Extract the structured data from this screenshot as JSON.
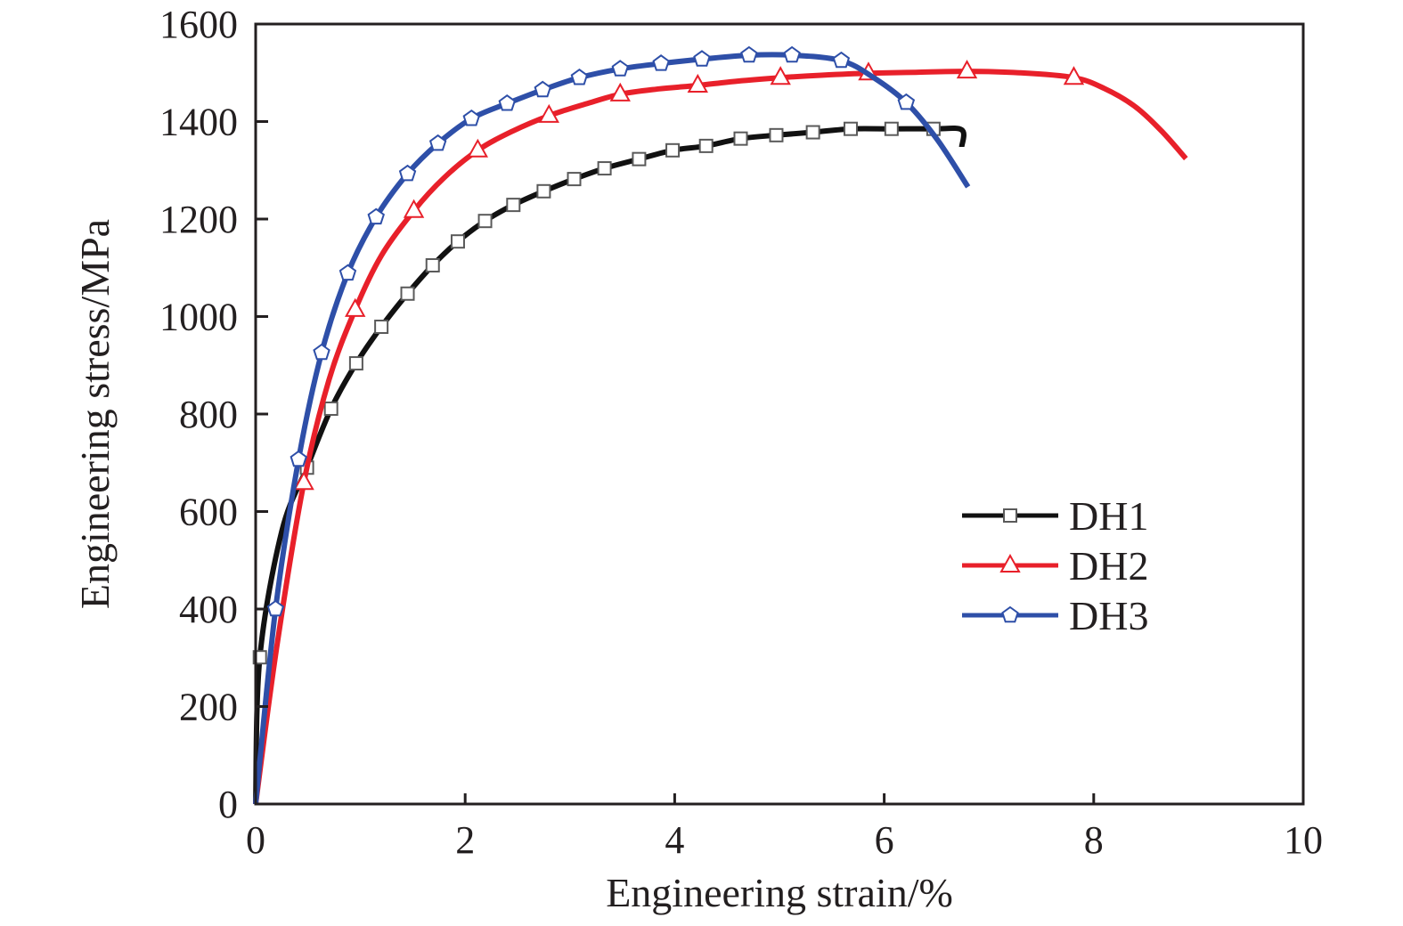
{
  "chart_data": {
    "type": "line",
    "title": "",
    "xlabel": "Engineering strain/%",
    "ylabel": "Engineering stress/MPa",
    "xlim": [
      0,
      10
    ],
    "ylim": [
      0,
      1600
    ],
    "xticks": [
      0,
      2,
      4,
      6,
      8,
      10
    ],
    "yticks": [
      0,
      200,
      400,
      600,
      800,
      1000,
      1200,
      1400,
      1600
    ],
    "xtick_labels": [
      "0",
      "2",
      "4",
      "6",
      "8",
      "10"
    ],
    "ytick_labels": [
      "0",
      "200",
      "400",
      "600",
      "800",
      "1000",
      "1200",
      "1400",
      "1600"
    ],
    "grid": false,
    "legend_position": "center-right",
    "series": [
      {
        "name": "DH1",
        "color": "#111111",
        "marker": "square",
        "line": [
          [
            0,
            0
          ],
          [
            0.04,
            301
          ],
          [
            0.25,
            560
          ],
          [
            0.49,
            690
          ],
          [
            0.72,
            811
          ],
          [
            0.96,
            904
          ],
          [
            1.2,
            979
          ],
          [
            1.45,
            1047
          ],
          [
            1.69,
            1105
          ],
          [
            1.93,
            1154
          ],
          [
            2.19,
            1196
          ],
          [
            2.46,
            1229
          ],
          [
            2.75,
            1257
          ],
          [
            3.04,
            1282
          ],
          [
            3.33,
            1304
          ],
          [
            3.66,
            1323
          ],
          [
            3.98,
            1341
          ],
          [
            4.3,
            1350
          ],
          [
            4.63,
            1365
          ],
          [
            4.97,
            1372
          ],
          [
            5.32,
            1378
          ],
          [
            5.68,
            1385
          ],
          [
            6.07,
            1385
          ],
          [
            6.47,
            1385
          ],
          [
            6.74,
            1383
          ],
          [
            6.74,
            1348
          ]
        ],
        "markers": [
          [
            0.04,
            301
          ],
          [
            0.49,
            690
          ],
          [
            0.72,
            811
          ],
          [
            0.96,
            904
          ],
          [
            1.2,
            979
          ],
          [
            1.45,
            1047
          ],
          [
            1.69,
            1105
          ],
          [
            1.93,
            1154
          ],
          [
            2.19,
            1196
          ],
          [
            2.46,
            1229
          ],
          [
            2.75,
            1257
          ],
          [
            3.04,
            1282
          ],
          [
            3.33,
            1304
          ],
          [
            3.66,
            1323
          ],
          [
            3.98,
            1341
          ],
          [
            4.3,
            1350
          ],
          [
            4.63,
            1365
          ],
          [
            4.97,
            1372
          ],
          [
            5.32,
            1378
          ],
          [
            5.68,
            1385
          ],
          [
            6.07,
            1385
          ],
          [
            6.47,
            1385
          ]
        ]
      },
      {
        "name": "DH2",
        "color": "#e8202a",
        "marker": "triangle",
        "line": [
          [
            0,
            0
          ],
          [
            0.2,
            320
          ],
          [
            0.46,
            659
          ],
          [
            0.7,
            870
          ],
          [
            0.95,
            1014
          ],
          [
            1.2,
            1125
          ],
          [
            1.51,
            1217
          ],
          [
            1.8,
            1285
          ],
          [
            2.12,
            1341
          ],
          [
            2.45,
            1380
          ],
          [
            2.8,
            1412
          ],
          [
            3.15,
            1436
          ],
          [
            3.48,
            1456
          ],
          [
            3.85,
            1467
          ],
          [
            4.22,
            1474
          ],
          [
            4.6,
            1483
          ],
          [
            5.01,
            1490
          ],
          [
            5.4,
            1495
          ],
          [
            5.85,
            1499
          ],
          [
            6.3,
            1501
          ],
          [
            6.79,
            1503
          ],
          [
            7.3,
            1500
          ],
          [
            7.81,
            1490
          ],
          [
            8.1,
            1468
          ],
          [
            8.4,
            1430
          ],
          [
            8.65,
            1380
          ],
          [
            8.88,
            1324
          ]
        ],
        "markers": [
          [
            0.46,
            659
          ],
          [
            0.95,
            1014
          ],
          [
            1.51,
            1217
          ],
          [
            2.12,
            1341
          ],
          [
            2.8,
            1412
          ],
          [
            3.48,
            1456
          ],
          [
            4.22,
            1474
          ],
          [
            5.01,
            1490
          ],
          [
            5.85,
            1499
          ],
          [
            6.79,
            1503
          ],
          [
            7.81,
            1490
          ]
        ]
      },
      {
        "name": "DH3",
        "color": "#2e4fa8",
        "marker": "pentagon",
        "line": [
          [
            0,
            0
          ],
          [
            0.19,
            400
          ],
          [
            0.41,
            707
          ],
          [
            0.63,
            926
          ],
          [
            0.88,
            1089
          ],
          [
            1.15,
            1204
          ],
          [
            1.45,
            1293
          ],
          [
            1.74,
            1355
          ],
          [
            2.06,
            1406
          ],
          [
            2.4,
            1437
          ],
          [
            2.74,
            1465
          ],
          [
            3.09,
            1490
          ],
          [
            3.48,
            1508
          ],
          [
            3.87,
            1519
          ],
          [
            4.26,
            1528
          ],
          [
            4.71,
            1536
          ],
          [
            5.12,
            1536
          ],
          [
            5.59,
            1525
          ],
          [
            5.9,
            1490
          ],
          [
            6.21,
            1439
          ],
          [
            6.5,
            1365
          ],
          [
            6.8,
            1266
          ]
        ],
        "markers": [
          [
            0.19,
            400
          ],
          [
            0.41,
            707
          ],
          [
            0.63,
            926
          ],
          [
            0.88,
            1089
          ],
          [
            1.15,
            1204
          ],
          [
            1.45,
            1293
          ],
          [
            1.74,
            1355
          ],
          [
            2.06,
            1406
          ],
          [
            2.4,
            1437
          ],
          [
            2.74,
            1465
          ],
          [
            3.09,
            1490
          ],
          [
            3.48,
            1508
          ],
          [
            3.87,
            1519
          ],
          [
            4.26,
            1528
          ],
          [
            4.71,
            1536
          ],
          [
            5.12,
            1536
          ],
          [
            5.59,
            1525
          ],
          [
            6.21,
            1439
          ]
        ]
      }
    ]
  }
}
